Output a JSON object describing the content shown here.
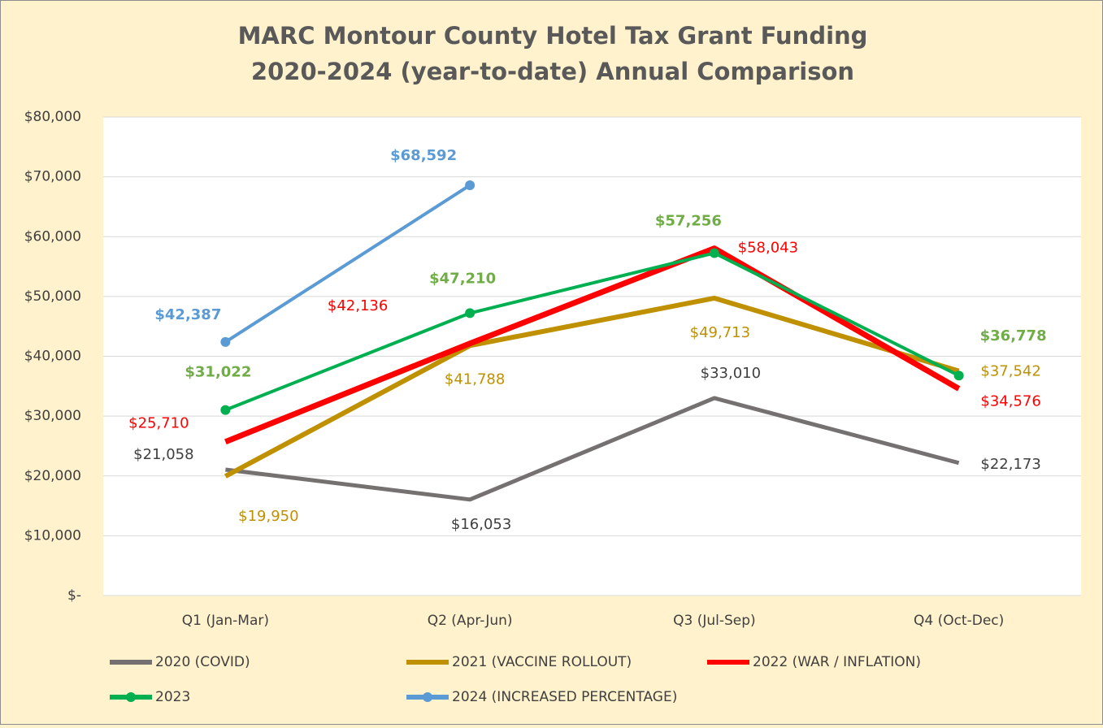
{
  "chart_data": {
    "type": "line",
    "title": "MARC Montour County Hotel Tax Grant Funding",
    "subtitle": "2020-2024 (year-to-date) Annual Comparison",
    "categories": [
      "Q1 (Jan-Mar)",
      "Q2 (Apr-Jun)",
      "Q3 (Jul-Sep)",
      "Q4 (Oct-Dec)"
    ],
    "ylim": [
      0,
      80000
    ],
    "yticks": [
      {
        "value": 0,
        "label": "$-"
      },
      {
        "value": 10000,
        "label": "$10,000"
      },
      {
        "value": 20000,
        "label": "$20,000"
      },
      {
        "value": 30000,
        "label": "$30,000"
      },
      {
        "value": 40000,
        "label": "$40,000"
      },
      {
        "value": 50000,
        "label": "$50,000"
      },
      {
        "value": 60000,
        "label": "$60,000"
      },
      {
        "value": 70000,
        "label": "$70,000"
      },
      {
        "value": 80000,
        "label": "$80,000"
      }
    ],
    "grid": true,
    "legend": "bottom",
    "series": [
      {
        "name": "2020 (COVID)",
        "color": "#767171",
        "marker": false,
        "values": [
          21058,
          16053,
          33010,
          22173
        ],
        "value_labels": [
          "$21,058",
          "$16,053",
          "$33,010",
          "$22,173"
        ]
      },
      {
        "name": "2021 (VACCINE ROLLOUT)",
        "color": "#bf9000",
        "marker": false,
        "values": [
          19950,
          41788,
          49713,
          37542
        ],
        "value_labels": [
          "$19,950",
          "$41,788",
          "$49,713",
          "$37,542"
        ]
      },
      {
        "name": "2022 (WAR / INFLATION)",
        "color": "#ff0000",
        "marker": false,
        "values": [
          25710,
          42136,
          58043,
          34576
        ],
        "value_labels": [
          "$25,710",
          "$42,136",
          "$58,043",
          "$34,576"
        ]
      },
      {
        "name": "2023",
        "color": "#00b050",
        "marker": true,
        "values": [
          31022,
          47210,
          57256,
          36778
        ],
        "value_labels": [
          "$31,022",
          "$47,210",
          "$57,256",
          "$36,778"
        ]
      },
      {
        "name": "2024 (INCREASED PERCENTAGE)",
        "color": "#5b9bd5",
        "marker": true,
        "values": [
          42387,
          68592,
          null,
          null
        ],
        "value_labels": [
          "$42,387",
          "$68,592",
          null,
          null
        ]
      }
    ]
  }
}
